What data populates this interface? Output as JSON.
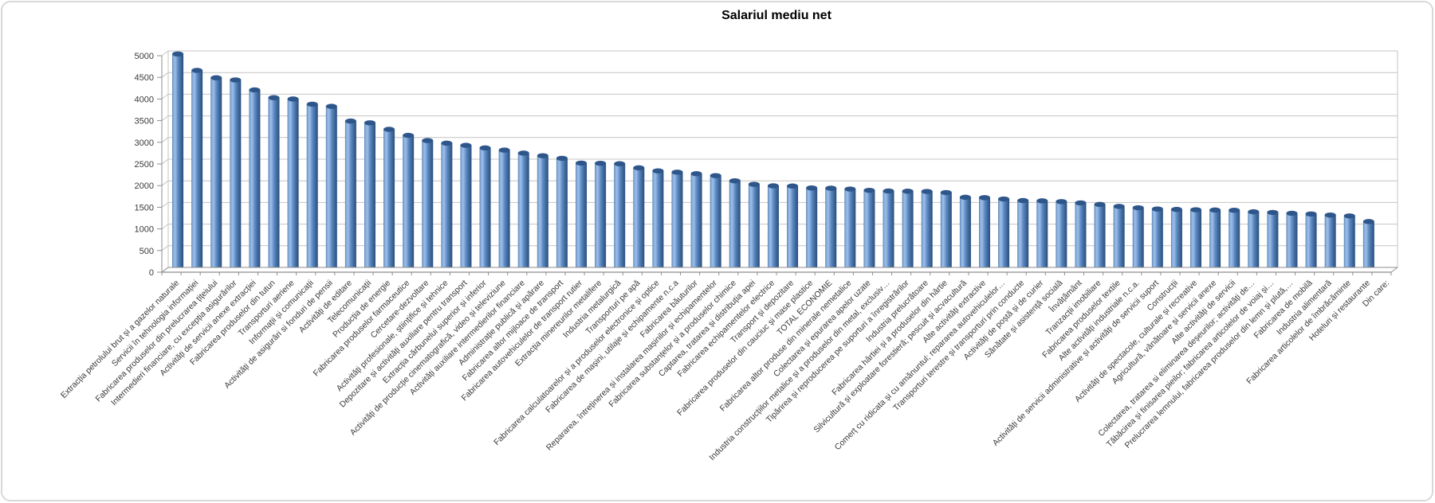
{
  "chart_data": {
    "type": "bar",
    "title": "Salariul mediu net",
    "xlabel": "",
    "ylabel": "",
    "ylim": [
      0,
      5000
    ],
    "ytick_step": 500,
    "grid": true,
    "legend": null,
    "bar_style": "cylinder-3d",
    "categories": [
      "Extracția petrolului brut și a gazelor naturale",
      "Servicii în tehnologia informației",
      "Fabricarea produselor din prelucrarea țițeiului",
      "Intermedieri financiare, cu excepția asigurărilor",
      "Activități de servicii anexe extracției",
      "Fabricarea produselor din tutun",
      "Transporturi aeriene",
      "Informații și comunicații",
      "Activități de asigurări si fonduri de pensii",
      "Activități de editare",
      "Telecomunicații",
      "Producția de energie",
      "Fabricarea produselor farmaceutice",
      "Cercetare-dezvoltare",
      "Activități profesionale, științifice și tehnice",
      "Depozitare și activități auxiliare pentru transport",
      "Extracția cărbunelui superior și inferior",
      "Activități de producție cinematografică, video și televiziune",
      "Activități auxiliare intermedierilor financiare",
      "Administrație publică și apărare",
      "Fabricarea altor mijloace de transport",
      "Fabricarea autovehiculelor de transport rutier",
      "Extracția minereurilor metalifere",
      "Industria metalurgică",
      "Transporturi pe apă",
      "Fabricarea calculatoarelor și a produselor electronice și optice",
      "Fabricarea de mașini, utilaje și echipamente n.c.a",
      "Fabricarea băuturilor",
      "Repararea, întreținerea și instalarea mașinilor și echipamentelor",
      "Fabricarea substanțelor și a produselor chimice",
      "Captarea, tratarea și distribuția apei",
      "Fabricarea echipamentelor electrice",
      "Transport și depozitare",
      "Fabricarea produselor din cauciuc și mase plastice",
      "TOTAL ECONOMIE",
      "Fabricarea altor produse din minerale nemetalice",
      "Colectarea și epurarea apelor uzate",
      "Industria construcțiilor metalice și a produselor din metal, exclusiv…",
      "Tipărirea și reproducerea pe suporturi a înregistrărilor",
      "Industria prelucrătoare",
      "Fabricarea hârtiei și a produselor din hârtie",
      "Silvicultură și exploatare forestieră; pescuit și acvacultură",
      "Alte activități extractive",
      "Comerț cu ridicata și cu amănuntul; repararea autovehiculelor…",
      "Transporturi terestre și transporturi prin conducte",
      "Activități de poștă și de curier",
      "Sănătate și asistență socială",
      "Învățământ",
      "Tranzacții imobiliare",
      "Fabricarea produselor textile",
      "Alte activități industriale n.c.a.",
      "Activități de servicii administrative și activități de servicii suport",
      "Construcții",
      "Activități de spectacole, culturale și recreative",
      "Agricultură, vânătoare și servicii anexe",
      "Alte activități de servicii",
      "Colectarea, tratarea si eliminarea deșeurilor; activități de…",
      "Tăbăcirea și finisarea pieilor; fabricarea articolelor de voiaj și…",
      "Prelucrarea lemnului, fabricarea produselor din lemn și plută,…",
      "Fabricarea de mobilă",
      "Industria alimentară",
      "Fabricarea articolelor de îmbrăcăminte",
      "Hoteluri și restaurante",
      "Din care:"
    ],
    "values": [
      4930,
      4550,
      4380,
      4330,
      4100,
      3920,
      3890,
      3770,
      3720,
      3380,
      3340,
      3190,
      3050,
      2930,
      2870,
      2820,
      2760,
      2710,
      2640,
      2580,
      2520,
      2410,
      2405,
      2395,
      2300,
      2230,
      2200,
      2165,
      2120,
      2000,
      1920,
      1885,
      1880,
      1835,
      1830,
      1810,
      1780,
      1765,
      1760,
      1755,
      1730,
      1620,
      1612,
      1580,
      1545,
      1538,
      1520,
      1490,
      1455,
      1410,
      1378,
      1350,
      1340,
      1332,
      1326,
      1320,
      1285,
      1270,
      1250,
      1235,
      1210,
      1190,
      1060,
      null
    ],
    "colors": {
      "bar": "#4F81BD",
      "bar_cap": "#2E568A",
      "grid": "#C4C4C4",
      "axis": "#8E8E8E",
      "text": "#3A3A3A",
      "title_text": "#000000",
      "frame_border": "#D8D8D8"
    }
  }
}
